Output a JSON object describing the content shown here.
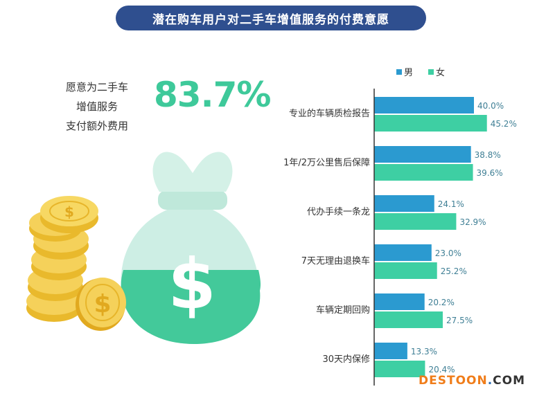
{
  "header": {
    "title": "潜在购车用户对二手车增值服务的付费意愿"
  },
  "summary": {
    "caption_lines": [
      "愿意为二手车",
      "增值服务",
      "支付额外费用"
    ],
    "percent": "83.7%"
  },
  "illustration": {
    "bag_symbol": "$",
    "coin_symbol": "$"
  },
  "colors": {
    "title_bg": "#2f4f8f",
    "male": "#2b9ad0",
    "female": "#3ecfa3",
    "percent_text": "#3ec99a",
    "label_text": "#333333",
    "value_text": "#3f7f95"
  },
  "chart_data": {
    "type": "bar",
    "orientation": "horizontal",
    "categories": [
      "专业的车辆质检报告",
      "1年/2万公里售后保障",
      "代办手续一条龙",
      "7天无理由退换车",
      "车辆定期回购",
      "30天内保修"
    ],
    "series": [
      {
        "name": "男",
        "values": [
          40.0,
          38.8,
          24.1,
          23.0,
          20.2,
          13.3
        ],
        "labels": [
          "40.0%",
          "38.8%",
          "24.1%",
          "23.0%",
          "20.2%",
          "13.3%"
        ]
      },
      {
        "name": "女",
        "values": [
          45.2,
          39.6,
          32.9,
          25.2,
          27.5,
          20.4
        ],
        "labels": [
          "45.2%",
          "39.6%",
          "32.9%",
          "25.2%",
          "27.5%",
          "20.4%"
        ]
      }
    ],
    "xlim": [
      0,
      50
    ],
    "grid": false,
    "legend_position": "top"
  },
  "watermark": {
    "main": "DESTOON",
    "dot": ".",
    "tld": "COM"
  }
}
